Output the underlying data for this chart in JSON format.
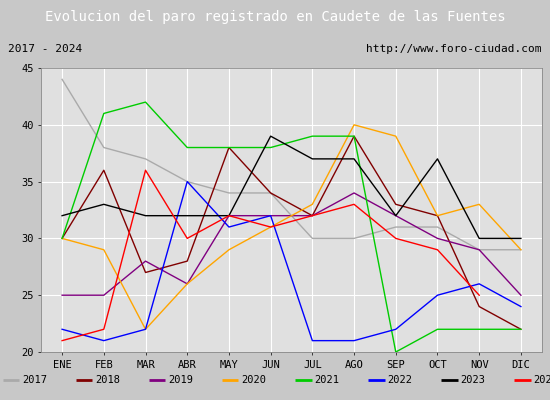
{
  "title": "Evolucion del paro registrado en Caudete de las Fuentes",
  "subtitle_left": "2017 - 2024",
  "subtitle_right": "http://www.foro-ciudad.com",
  "months": [
    "ENE",
    "FEB",
    "MAR",
    "ABR",
    "MAY",
    "JUN",
    "JUL",
    "AGO",
    "SEP",
    "OCT",
    "NOV",
    "DIC"
  ],
  "ylim": [
    20,
    45
  ],
  "yticks": [
    20,
    25,
    30,
    35,
    40,
    45
  ],
  "series": {
    "2017": {
      "color": "#aaaaaa",
      "data": [
        44,
        38,
        37,
        35,
        34,
        34,
        30,
        30,
        31,
        31,
        29,
        29
      ]
    },
    "2018": {
      "color": "#800000",
      "data": [
        30,
        36,
        27,
        28,
        38,
        34,
        32,
        39,
        33,
        32,
        24,
        22
      ]
    },
    "2019": {
      "color": "#800080",
      "data": [
        25,
        25,
        28,
        26,
        32,
        32,
        32,
        34,
        32,
        30,
        29,
        25
      ]
    },
    "2020": {
      "color": "#ffa500",
      "data": [
        30,
        29,
        22,
        26,
        29,
        31,
        33,
        40,
        39,
        32,
        33,
        29
      ]
    },
    "2021": {
      "color": "#00cc00",
      "data": [
        30,
        41,
        42,
        38,
        38,
        38,
        39,
        39,
        20,
        22,
        22,
        22
      ]
    },
    "2022": {
      "color": "#0000ff",
      "data": [
        22,
        21,
        22,
        35,
        31,
        32,
        21,
        21,
        22,
        25,
        26,
        24
      ]
    },
    "2023": {
      "color": "#000000",
      "data": [
        32,
        33,
        32,
        32,
        32,
        39,
        37,
        37,
        32,
        37,
        30,
        30
      ]
    },
    "2024": {
      "color": "#ff0000",
      "data": [
        21,
        22,
        36,
        30,
        32,
        31,
        32,
        33,
        30,
        29,
        25,
        null
      ]
    }
  },
  "background_color": "#c8c8c8",
  "plot_bg_color": "#e0e0e0",
  "title_bg_color": "#4472c4",
  "title_color": "#ffffff",
  "subtitle_bg_color": "#f0f0f0",
  "legend_bg_color": "#f0f0f0",
  "title_fontsize": 10,
  "subtitle_fontsize": 8,
  "tick_fontsize": 7.5,
  "legend_fontsize": 7.5,
  "grid_color": "#ffffff",
  "border_color": "#4472c4"
}
